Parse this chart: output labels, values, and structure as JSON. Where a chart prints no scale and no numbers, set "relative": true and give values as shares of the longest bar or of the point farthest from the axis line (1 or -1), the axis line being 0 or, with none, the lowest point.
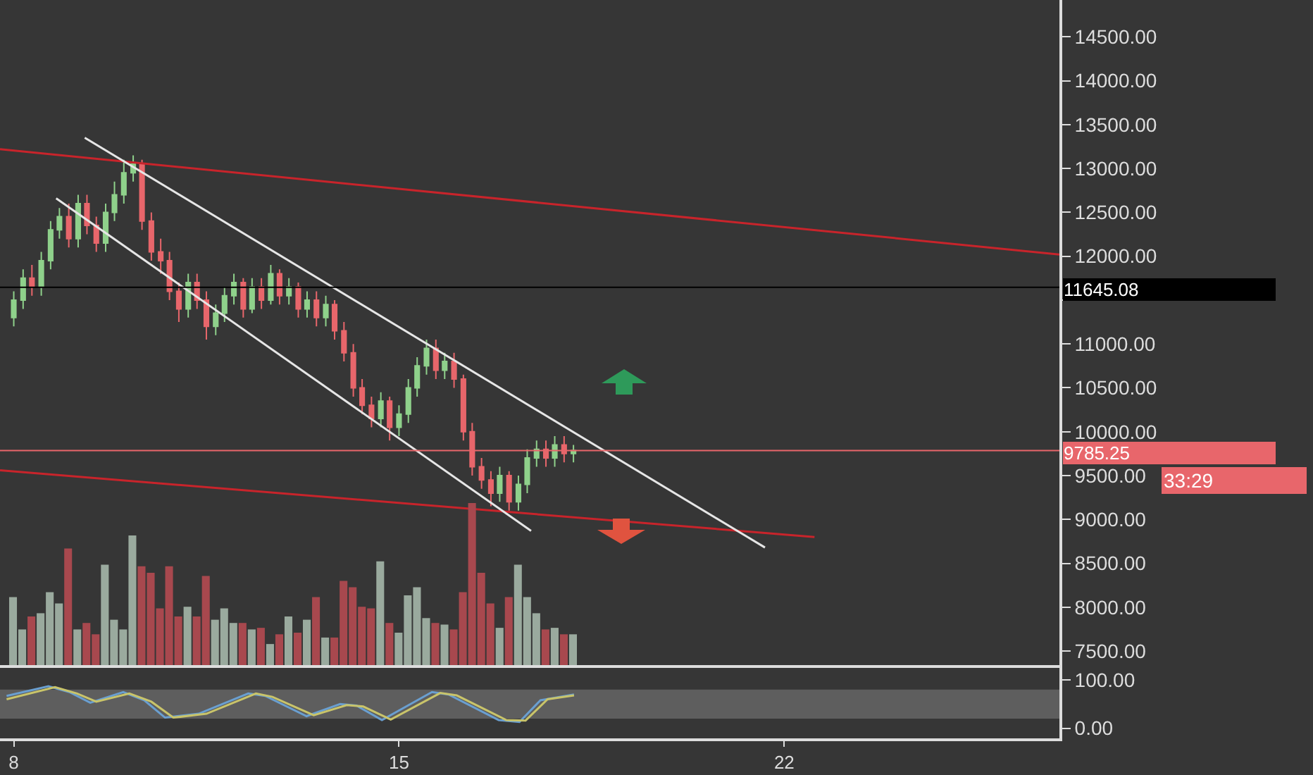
{
  "chart_data": [
    {
      "type": "candlestick",
      "tick_labels": "y",
      "x": [
        8,
        8.17,
        8.33,
        8.5,
        8.67,
        8.83,
        9,
        9.17,
        9.33,
        9.5,
        9.67,
        9.83,
        10,
        10.17,
        10.33,
        10.5,
        10.67,
        10.83,
        11,
        11.17,
        11.33,
        11.5,
        11.67,
        11.83,
        12,
        12.17,
        12.33,
        12.5,
        12.67,
        12.83,
        13,
        13.17,
        13.33,
        13.5,
        13.67,
        13.83,
        14,
        14.17,
        14.33,
        14.5,
        14.67,
        14.83,
        15,
        15.17,
        15.33,
        15.5,
        15.67,
        15.83,
        16,
        16.17,
        16.33,
        16.5,
        16.67,
        16.83,
        17,
        17.17,
        17.33,
        17.5,
        17.67,
        17.83,
        18,
        18.17
      ],
      "ohlc": [
        [
          11300,
          11600,
          11200,
          11500
        ],
        [
          11500,
          11850,
          11400,
          11750
        ],
        [
          11750,
          11900,
          11550,
          11650
        ],
        [
          11650,
          12050,
          11550,
          11950
        ],
        [
          11950,
          12400,
          11850,
          12300
        ],
        [
          12300,
          12550,
          12200,
          12450
        ],
        [
          12450,
          12600,
          12100,
          12200
        ],
        [
          12200,
          12700,
          12100,
          12600
        ],
        [
          12600,
          12700,
          12250,
          12350
        ],
        [
          12350,
          12450,
          12050,
          12150
        ],
        [
          12150,
          12600,
          12050,
          12500
        ],
        [
          12500,
          12850,
          12400,
          12700
        ],
        [
          12700,
          13100,
          12600,
          12950
        ],
        [
          12950,
          13150,
          12850,
          13050
        ],
        [
          13050,
          13100,
          12300,
          12400
        ],
        [
          12400,
          12500,
          11950,
          12050
        ],
        [
          12050,
          12200,
          11800,
          11950
        ],
        [
          11950,
          12050,
          11500,
          11600
        ],
        [
          11600,
          11700,
          11250,
          11400
        ],
        [
          11400,
          11800,
          11300,
          11700
        ],
        [
          11700,
          11800,
          11400,
          11500
        ],
        [
          11500,
          11600,
          11050,
          11200
        ],
        [
          11200,
          11450,
          11100,
          11350
        ],
        [
          11350,
          11650,
          11250,
          11550
        ],
        [
          11550,
          11800,
          11450,
          11700
        ],
        [
          11700,
          11750,
          11300,
          11400
        ],
        [
          11400,
          11750,
          11350,
          11650
        ],
        [
          11650,
          11750,
          11400,
          11500
        ],
        [
          11500,
          11900,
          11450,
          11800
        ],
        [
          11800,
          11850,
          11450,
          11550
        ],
        [
          11550,
          11750,
          11450,
          11650
        ],
        [
          11650,
          11700,
          11300,
          11400
        ],
        [
          11400,
          11600,
          11300,
          11500
        ],
        [
          11500,
          11600,
          11200,
          11300
        ],
        [
          11300,
          11550,
          11200,
          11450
        ],
        [
          11450,
          11500,
          11050,
          11150
        ],
        [
          11150,
          11250,
          10800,
          10900
        ],
        [
          10900,
          11000,
          10400,
          10500
        ],
        [
          10500,
          10600,
          10200,
          10300
        ],
        [
          10300,
          10400,
          10050,
          10150
        ],
        [
          10150,
          10450,
          10050,
          10350
        ],
        [
          10350,
          10400,
          9900,
          10050
        ],
        [
          10050,
          10300,
          9950,
          10200
        ],
        [
          10200,
          10600,
          10100,
          10500
        ],
        [
          10500,
          10850,
          10400,
          10750
        ],
        [
          10750,
          11050,
          10650,
          10950
        ],
        [
          10950,
          11050,
          10600,
          10700
        ],
        [
          10700,
          10900,
          10600,
          10800
        ],
        [
          10800,
          10900,
          10500,
          10600
        ],
        [
          10600,
          10650,
          9900,
          10000
        ],
        [
          10000,
          10100,
          9500,
          9600
        ],
        [
          9600,
          9700,
          9350,
          9450
        ],
        [
          9450,
          9550,
          9150,
          9300
        ],
        [
          9300,
          9600,
          9200,
          9500
        ],
        [
          9500,
          9550,
          9100,
          9200
        ],
        [
          9200,
          9500,
          9100,
          9400
        ],
        [
          9400,
          9800,
          9300,
          9700
        ],
        [
          9700,
          9900,
          9600,
          9800
        ],
        [
          9800,
          9900,
          9600,
          9700
        ],
        [
          9700,
          9950,
          9600,
          9850
        ],
        [
          9850,
          9950,
          9650,
          9750
        ],
        [
          9750,
          9850,
          9650,
          9785.25
        ]
      ],
      "colors": [
        "#8fd18b",
        "#8fd18b",
        "#e8666b",
        "#8fd18b",
        "#8fd18b",
        "#8fd18b",
        "#e8666b",
        "#8fd18b",
        "#e8666b",
        "#e8666b",
        "#8fd18b",
        "#8fd18b",
        "#8fd18b",
        "#8fd18b",
        "#e8666b",
        "#e8666b",
        "#e8666b",
        "#e8666b",
        "#e8666b",
        "#8fd18b",
        "#e8666b",
        "#e8666b",
        "#8fd18b",
        "#8fd18b",
        "#8fd18b",
        "#e8666b",
        "#8fd18b",
        "#e8666b",
        "#8fd18b",
        "#e8666b",
        "#8fd18b",
        "#e8666b",
        "#8fd18b",
        "#e8666b",
        "#8fd18b",
        "#e8666b",
        "#e8666b",
        "#e8666b",
        "#e8666b",
        "#e8666b",
        "#8fd18b",
        "#e8666b",
        "#8fd18b",
        "#8fd18b",
        "#8fd18b",
        "#8fd18b",
        "#e8666b",
        "#8fd18b",
        "#e8666b",
        "#e8666b",
        "#e8666b",
        "#e8666b",
        "#e8666b",
        "#8fd18b",
        "#e8666b",
        "#8fd18b",
        "#8fd18b",
        "#8fd18b",
        "#e8666b",
        "#8fd18b",
        "#e8666b",
        "#8fd18b"
      ],
      "series": [
        {
          "type": "line",
          "x": [
            7.75,
            27
          ],
          "values": [
            13220,
            12020
          ],
          "color": "#c8242b"
        },
        {
          "type": "line",
          "x": [
            7.75,
            22.55
          ],
          "values": [
            9560,
            8800
          ],
          "color": "#c8242b"
        },
        {
          "type": "line",
          "x": [
            9.29,
            21.65
          ],
          "values": [
            13350,
            8680
          ],
          "color": "#e6e6e6"
        },
        {
          "type": "line",
          "x": [
            8.77,
            17.4
          ],
          "values": [
            12660,
            8870
          ],
          "color": "#e6e6e6"
        }
      ],
      "xlim": [
        7.75,
        27
      ],
      "ylim": [
        7340,
        14920
      ],
      "yticks": [
        {
          "value": 7500,
          "label": "7500.00"
        },
        {
          "value": 8000,
          "label": "8000.00"
        },
        {
          "value": 8500,
          "label": "8500.00"
        },
        {
          "value": 9000,
          "label": "9000.00"
        },
        {
          "value": 9500,
          "label": "9500.00"
        },
        {
          "value": 10000,
          "label": "10000.00"
        },
        {
          "value": 10500,
          "label": "10500.00"
        },
        {
          "value": 11000,
          "label": "11000.00"
        },
        {
          "value": 11500,
          "label": null
        },
        {
          "value": 12000,
          "label": "12000.00"
        },
        {
          "value": 12500,
          "label": "12500.00"
        },
        {
          "value": 13000,
          "label": "13000.00"
        },
        {
          "value": 13500,
          "label": "13500.00"
        },
        {
          "value": 14000,
          "label": "14000.00"
        },
        {
          "value": 14500,
          "label": "14500.00"
        }
      ],
      "ref_lines": [
        {
          "axis": "y",
          "value": 11645.08,
          "label": "11645.08",
          "color": "#000000"
        },
        {
          "axis": "y",
          "value": 9785.25,
          "label": "9785.25",
          "color": "#e8666b"
        }
      ],
      "annotations": [
        "33:29"
      ]
    },
    {
      "type": "bar",
      "relative": true,
      "tick_labels": false,
      "categories": [
        null,
        null,
        null,
        null,
        null,
        null,
        null,
        null,
        null,
        null,
        null,
        null,
        null,
        null,
        null,
        null,
        null,
        null,
        null,
        null,
        null,
        null,
        null,
        null,
        null,
        null,
        null,
        null,
        null,
        null,
        null,
        null,
        null,
        null,
        null,
        null,
        null,
        null,
        null,
        null,
        null,
        null,
        null,
        null,
        null,
        null,
        null,
        null,
        null,
        null,
        null,
        null,
        null,
        null,
        null,
        null,
        null,
        null,
        null,
        null,
        null,
        null
      ],
      "values": [
        0.42,
        0.22,
        0.3,
        0.32,
        0.45,
        0.38,
        0.72,
        0.22,
        0.26,
        0.19,
        0.62,
        0.28,
        0.22,
        0.8,
        0.61,
        0.57,
        0.35,
        0.61,
        0.3,
        0.36,
        0.3,
        0.55,
        0.28,
        0.35,
        0.26,
        0.26,
        0.22,
        0.23,
        0.13,
        0.19,
        0.3,
        0.2,
        0.28,
        0.42,
        0.17,
        0.17,
        0.52,
        0.48,
        0.36,
        0.35,
        0.64,
        0.26,
        0.2,
        0.43,
        0.48,
        0.29,
        0.26,
        0.25,
        0.22,
        0.45,
        1,
        0.57,
        0.38,
        0.23,
        0.42,
        0.62,
        0.42,
        0.32,
        0.22,
        0.23,
        0.19,
        0.19
      ],
      "colors": [
        "#9aaa9e",
        "#9aaa9e",
        "#a8484e",
        "#9aaa9e",
        "#9aaa9e",
        "#9aaa9e",
        "#a8484e",
        "#9aaa9e",
        "#a8484e",
        "#a8484e",
        "#9aaa9e",
        "#9aaa9e",
        "#9aaa9e",
        "#9aaa9e",
        "#a8484e",
        "#a8484e",
        "#a8484e",
        "#a8484e",
        "#a8484e",
        "#9aaa9e",
        "#a8484e",
        "#a8484e",
        "#9aaa9e",
        "#9aaa9e",
        "#9aaa9e",
        "#a8484e",
        "#9aaa9e",
        "#a8484e",
        "#9aaa9e",
        "#a8484e",
        "#9aaa9e",
        "#a8484e",
        "#9aaa9e",
        "#a8484e",
        "#9aaa9e",
        "#a8484e",
        "#a8484e",
        "#a8484e",
        "#a8484e",
        "#a8484e",
        "#9aaa9e",
        "#a8484e",
        "#9aaa9e",
        "#9aaa9e",
        "#9aaa9e",
        "#9aaa9e",
        "#a8484e",
        "#9aaa9e",
        "#a8484e",
        "#a8484e",
        "#a8484e",
        "#a8484e",
        "#a8484e",
        "#9aaa9e",
        "#a8484e",
        "#9aaa9e",
        "#9aaa9e",
        "#9aaa9e",
        "#a8484e",
        "#9aaa9e",
        "#a8484e",
        "#9aaa9e"
      ]
    },
    {
      "type": "line",
      "series": [
        {
          "color": "#6a9fd0",
          "x": [
            7.87,
            8.63,
            9.01,
            9.39,
            9.99,
            10.37,
            10.75,
            11.36,
            12.26,
            12.57,
            13.32,
            13.93,
            14.23,
            14.69,
            15.6,
            15.9,
            16.81,
            17.19,
            17.57,
            18.18
          ],
          "values": [
            67,
            87,
            75,
            53,
            75,
            58,
            22,
            30,
            72,
            67,
            25,
            50,
            47,
            17,
            75,
            70,
            17,
            13,
            58,
            70
          ]
        },
        {
          "color": "#c9c46a",
          "x": [
            7.87,
            8.75,
            9.15,
            9.5,
            10.1,
            10.5,
            10.9,
            11.5,
            12.4,
            12.7,
            13.45,
            14.05,
            14.35,
            14.85,
            15.75,
            16.05,
            16.95,
            17.3,
            17.7,
            18.18
          ],
          "values": [
            60,
            85,
            72,
            55,
            72,
            55,
            22,
            30,
            72,
            65,
            27,
            48,
            45,
            18,
            73,
            68,
            17,
            16,
            60,
            68
          ]
        }
      ],
      "xlim": [
        7.75,
        27
      ],
      "ylim": [
        -21,
        125
      ],
      "xticks": [
        {
          "value": 8,
          "label": "8"
        },
        15,
        22
      ],
      "yticks": [
        {
          "value": 0,
          "label": "0.00"
        },
        {
          "value": 100,
          "label": "100.00"
        }
      ],
      "bands": [
        {
          "axis": "y",
          "from": 20,
          "to": 80,
          "color": "#5e5e5e"
        }
      ]
    }
  ]
}
